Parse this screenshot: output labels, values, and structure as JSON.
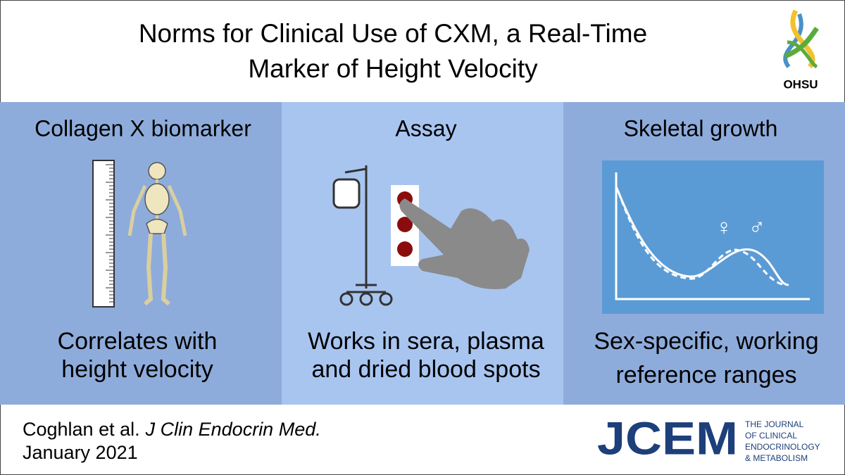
{
  "header": {
    "title_lines": [
      "Norms for Clinical Use of CXM, a Real-Time",
      "Marker of Height Velocity"
    ],
    "logo_text": "OHSU"
  },
  "panels": [
    {
      "heading": "Collagen X biomarker",
      "caption_lines": [
        "Correlates with",
        "height velocity"
      ]
    },
    {
      "heading": "Assay",
      "caption_lines": [
        "Works in sera, plasma",
        "and dried blood spots"
      ]
    },
    {
      "heading": "Skeletal growth",
      "caption_lines": [
        "Sex-specific, working",
        "reference ranges"
      ],
      "female_symbol": "♀",
      "male_symbol": "♂"
    }
  ],
  "footer": {
    "authors": "Coghlan et al.",
    "journal": "J Clin Endocrin Med.",
    "date": "January 2021",
    "journal_logo": "JCEM",
    "journal_name_lines": [
      "THE JOURNAL",
      "OF CLINICAL",
      "ENDOCRINOLOGY",
      "& METABOLISM"
    ]
  }
}
